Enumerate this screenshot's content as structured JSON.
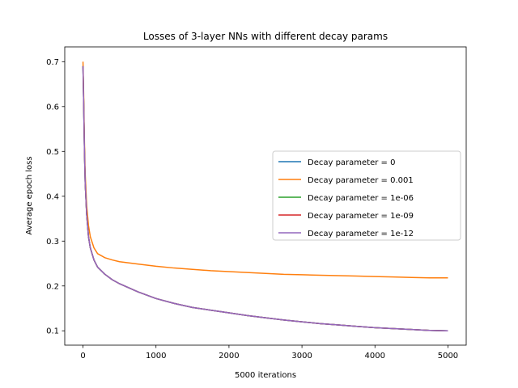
{
  "chart_data": {
    "type": "line",
    "title": "Losses of 3-layer NNs with different decay params",
    "xlabel": "5000 iterations",
    "ylabel": "Average epoch loss",
    "xlim": [
      -250,
      5250
    ],
    "ylim": [
      0.068,
      0.733
    ],
    "xticks": [
      0,
      1000,
      2000,
      3000,
      4000,
      5000
    ],
    "yticks": [
      0.1,
      0.2,
      0.3,
      0.4,
      0.5,
      0.6,
      0.7
    ],
    "grid": false,
    "legend_position": "center-right",
    "series": [
      {
        "name": "Decay parameter = 0",
        "color": "#1f77b4",
        "x": [
          0,
          10,
          20,
          30,
          50,
          75,
          100,
          150,
          200,
          300,
          400,
          500,
          750,
          1000,
          1250,
          1500,
          1750,
          2000,
          2250,
          2500,
          2750,
          3000,
          3250,
          3500,
          3750,
          4000,
          4250,
          4500,
          4750,
          5000
        ],
        "y": [
          0.69,
          0.6,
          0.5,
          0.43,
          0.36,
          0.31,
          0.285,
          0.258,
          0.242,
          0.226,
          0.214,
          0.205,
          0.187,
          0.172,
          0.161,
          0.152,
          0.146,
          0.14,
          0.134,
          0.129,
          0.124,
          0.12,
          0.116,
          0.113,
          0.11,
          0.107,
          0.105,
          0.103,
          0.101,
          0.1
        ]
      },
      {
        "name": "Decay parameter = 0.001",
        "color": "#ff7f0e",
        "x": [
          0,
          10,
          20,
          30,
          50,
          75,
          100,
          150,
          200,
          300,
          400,
          500,
          750,
          1000,
          1250,
          1500,
          1750,
          2000,
          2250,
          2500,
          2750,
          3000,
          3250,
          3500,
          3750,
          4000,
          4250,
          4500,
          4750,
          5000
        ],
        "y": [
          0.7,
          0.62,
          0.52,
          0.45,
          0.38,
          0.335,
          0.31,
          0.285,
          0.272,
          0.263,
          0.258,
          0.254,
          0.249,
          0.244,
          0.24,
          0.237,
          0.234,
          0.232,
          0.23,
          0.228,
          0.226,
          0.225,
          0.224,
          0.223,
          0.222,
          0.221,
          0.22,
          0.219,
          0.218,
          0.218
        ]
      },
      {
        "name": "Decay parameter = 1e-06",
        "color": "#2ca02c",
        "x": [
          0,
          10,
          20,
          30,
          50,
          75,
          100,
          150,
          200,
          300,
          400,
          500,
          750,
          1000,
          1250,
          1500,
          1750,
          2000,
          2250,
          2500,
          2750,
          3000,
          3250,
          3500,
          3750,
          4000,
          4250,
          4500,
          4750,
          5000
        ],
        "y": [
          0.69,
          0.6,
          0.5,
          0.43,
          0.36,
          0.31,
          0.285,
          0.258,
          0.242,
          0.226,
          0.214,
          0.205,
          0.187,
          0.172,
          0.161,
          0.152,
          0.146,
          0.14,
          0.134,
          0.129,
          0.124,
          0.12,
          0.116,
          0.113,
          0.11,
          0.107,
          0.105,
          0.103,
          0.101,
          0.1
        ]
      },
      {
        "name": "Decay parameter = 1e-09",
        "color": "#d62728",
        "x": [
          0,
          10,
          20,
          30,
          50,
          75,
          100,
          150,
          200,
          300,
          400,
          500,
          750,
          1000,
          1250,
          1500,
          1750,
          2000,
          2250,
          2500,
          2750,
          3000,
          3250,
          3500,
          3750,
          4000,
          4250,
          4500,
          4750,
          5000
        ],
        "y": [
          0.69,
          0.6,
          0.5,
          0.43,
          0.36,
          0.31,
          0.285,
          0.258,
          0.242,
          0.226,
          0.214,
          0.205,
          0.187,
          0.172,
          0.161,
          0.152,
          0.146,
          0.14,
          0.134,
          0.129,
          0.124,
          0.12,
          0.116,
          0.113,
          0.11,
          0.107,
          0.105,
          0.103,
          0.101,
          0.1
        ]
      },
      {
        "name": "Decay parameter = 1e-12",
        "color": "#9467bd",
        "x": [
          0,
          10,
          20,
          30,
          50,
          75,
          100,
          150,
          200,
          300,
          400,
          500,
          750,
          1000,
          1250,
          1500,
          1750,
          2000,
          2250,
          2500,
          2750,
          3000,
          3250,
          3500,
          3750,
          4000,
          4250,
          4500,
          4750,
          5000
        ],
        "y": [
          0.69,
          0.6,
          0.5,
          0.43,
          0.36,
          0.31,
          0.285,
          0.258,
          0.242,
          0.226,
          0.214,
          0.205,
          0.187,
          0.172,
          0.161,
          0.152,
          0.146,
          0.14,
          0.134,
          0.129,
          0.124,
          0.12,
          0.116,
          0.113,
          0.11,
          0.107,
          0.105,
          0.103,
          0.101,
          0.1
        ]
      }
    ]
  }
}
